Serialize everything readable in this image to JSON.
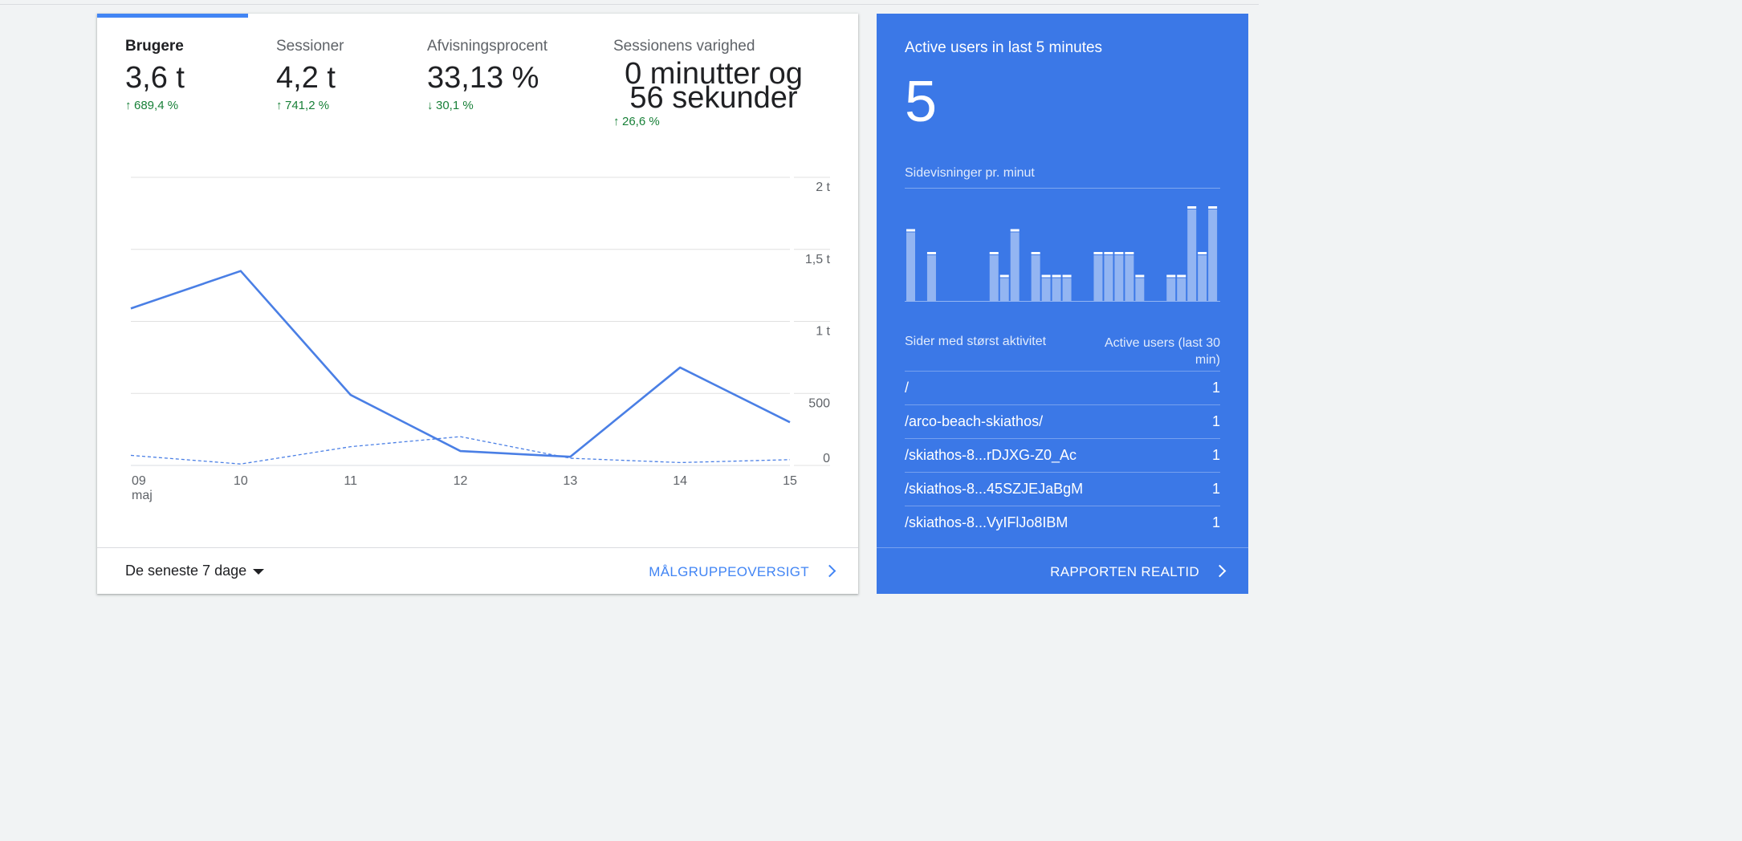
{
  "metrics": [
    {
      "label": "Brugere",
      "value": "3,6 t",
      "change": "689,4 %",
      "direction": "up",
      "active": true
    },
    {
      "label": "Sessioner",
      "value": "4,2 t",
      "change": "741,2 %",
      "direction": "up",
      "active": false
    },
    {
      "label": "Afvisningsprocent",
      "value": "33,13 %",
      "change": "30,1 %",
      "direction": "down",
      "active": false
    },
    {
      "label": "Sessionens varighed",
      "value_line1": "0 minutter og",
      "value_line2": "56 sekunder",
      "change": "26,6 %",
      "direction": "up",
      "active": false
    }
  ],
  "arrows": {
    "up": "↑",
    "down": "↓"
  },
  "chart_data": {
    "type": "line",
    "x": [
      "09",
      "10",
      "11",
      "12",
      "13",
      "14",
      "15"
    ],
    "x_sublabel": "maj",
    "y_ticks": [
      "0",
      "500",
      "1 t",
      "1,5 t",
      "2 t"
    ],
    "ylim": [
      0,
      2000
    ],
    "grid": true,
    "series": [
      {
        "values": [
          1090,
          1350,
          490,
          100,
          60,
          680,
          300
        ],
        "style": "solid"
      },
      {
        "values": [
          70,
          10,
          130,
          200,
          50,
          20,
          40
        ],
        "style": "dashed"
      }
    ],
    "colors": {
      "line": "#4a7fe5",
      "grid": "#e0e0e0",
      "axis": "#dadce0"
    }
  },
  "footer": {
    "date_range": "De seneste 7 dage",
    "audience_link": "MÅLGRUPPEOVERSIGT"
  },
  "realtime": {
    "title": "Active users in last 5 minutes",
    "value": "5",
    "pageviews_label": "Sidevisninger pr. minut",
    "pageviews_per_minute": [
      3,
      0,
      2,
      0,
      0,
      0,
      0,
      0,
      2,
      1,
      3,
      0,
      2,
      1,
      1,
      1,
      0,
      0,
      2,
      2,
      2,
      2,
      1,
      0,
      0,
      1,
      1,
      4,
      2,
      4
    ],
    "table_header_page": "Sider med størst aktivitet",
    "table_header_users": "Active users (last 30 min)",
    "pages": [
      {
        "path": "/",
        "users": "1"
      },
      {
        "path": "/arco-beach-skiathos/",
        "users": "1"
      },
      {
        "path": "/skiathos-8...rDJXG-Z0_Ac",
        "users": "1"
      },
      {
        "path": "/skiathos-8...45SZJEJaBgM",
        "users": "1"
      },
      {
        "path": "/skiathos-8...VyIFlJo8IBM",
        "users": "1"
      }
    ],
    "report_link": "RAPPORTEN REALTID"
  }
}
